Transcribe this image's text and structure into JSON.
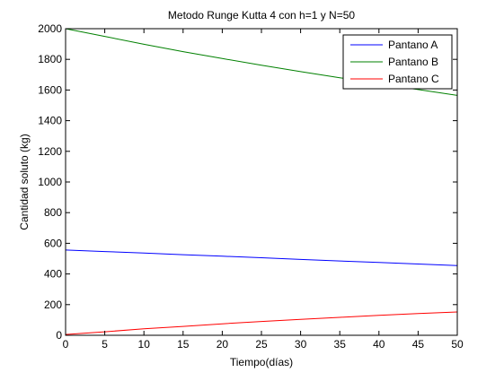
{
  "chart_data": {
    "type": "line",
    "title": "Metodo Runge Kutta 4 con h=1 y N=50",
    "xlabel": "Tiempo(días)",
    "ylabel": "Cantidad soluto (kg)",
    "xlim": [
      0,
      50
    ],
    "ylim": [
      0,
      2000
    ],
    "xticks": [
      0,
      5,
      10,
      15,
      20,
      25,
      30,
      35,
      40,
      45,
      50
    ],
    "yticks": [
      0,
      200,
      400,
      600,
      800,
      1000,
      1200,
      1400,
      1600,
      1800,
      2000
    ],
    "grid": false,
    "legend_position": "top-right",
    "series": [
      {
        "name": "Pantano A",
        "color": "#0000ff",
        "x": [
          0,
          5,
          10,
          15,
          20,
          25,
          30,
          35,
          40,
          45,
          50
        ],
        "y": [
          556,
          546,
          536,
          526,
          516,
          506,
          495,
          485,
          475,
          465,
          455
        ]
      },
      {
        "name": "Pantano B",
        "color": "#008000",
        "x": [
          0,
          5,
          10,
          15,
          20,
          25,
          30,
          35,
          40,
          45,
          50
        ],
        "y": [
          2000,
          1950,
          1898,
          1850,
          1805,
          1762,
          1720,
          1680,
          1640,
          1603,
          1565
        ]
      },
      {
        "name": "Pantano C",
        "color": "#ff0000",
        "x": [
          0,
          5,
          10,
          15,
          20,
          25,
          30,
          35,
          40,
          45,
          50
        ],
        "y": [
          5,
          23,
          42,
          58,
          75,
          90,
          104,
          117,
          130,
          142,
          152
        ]
      }
    ]
  }
}
